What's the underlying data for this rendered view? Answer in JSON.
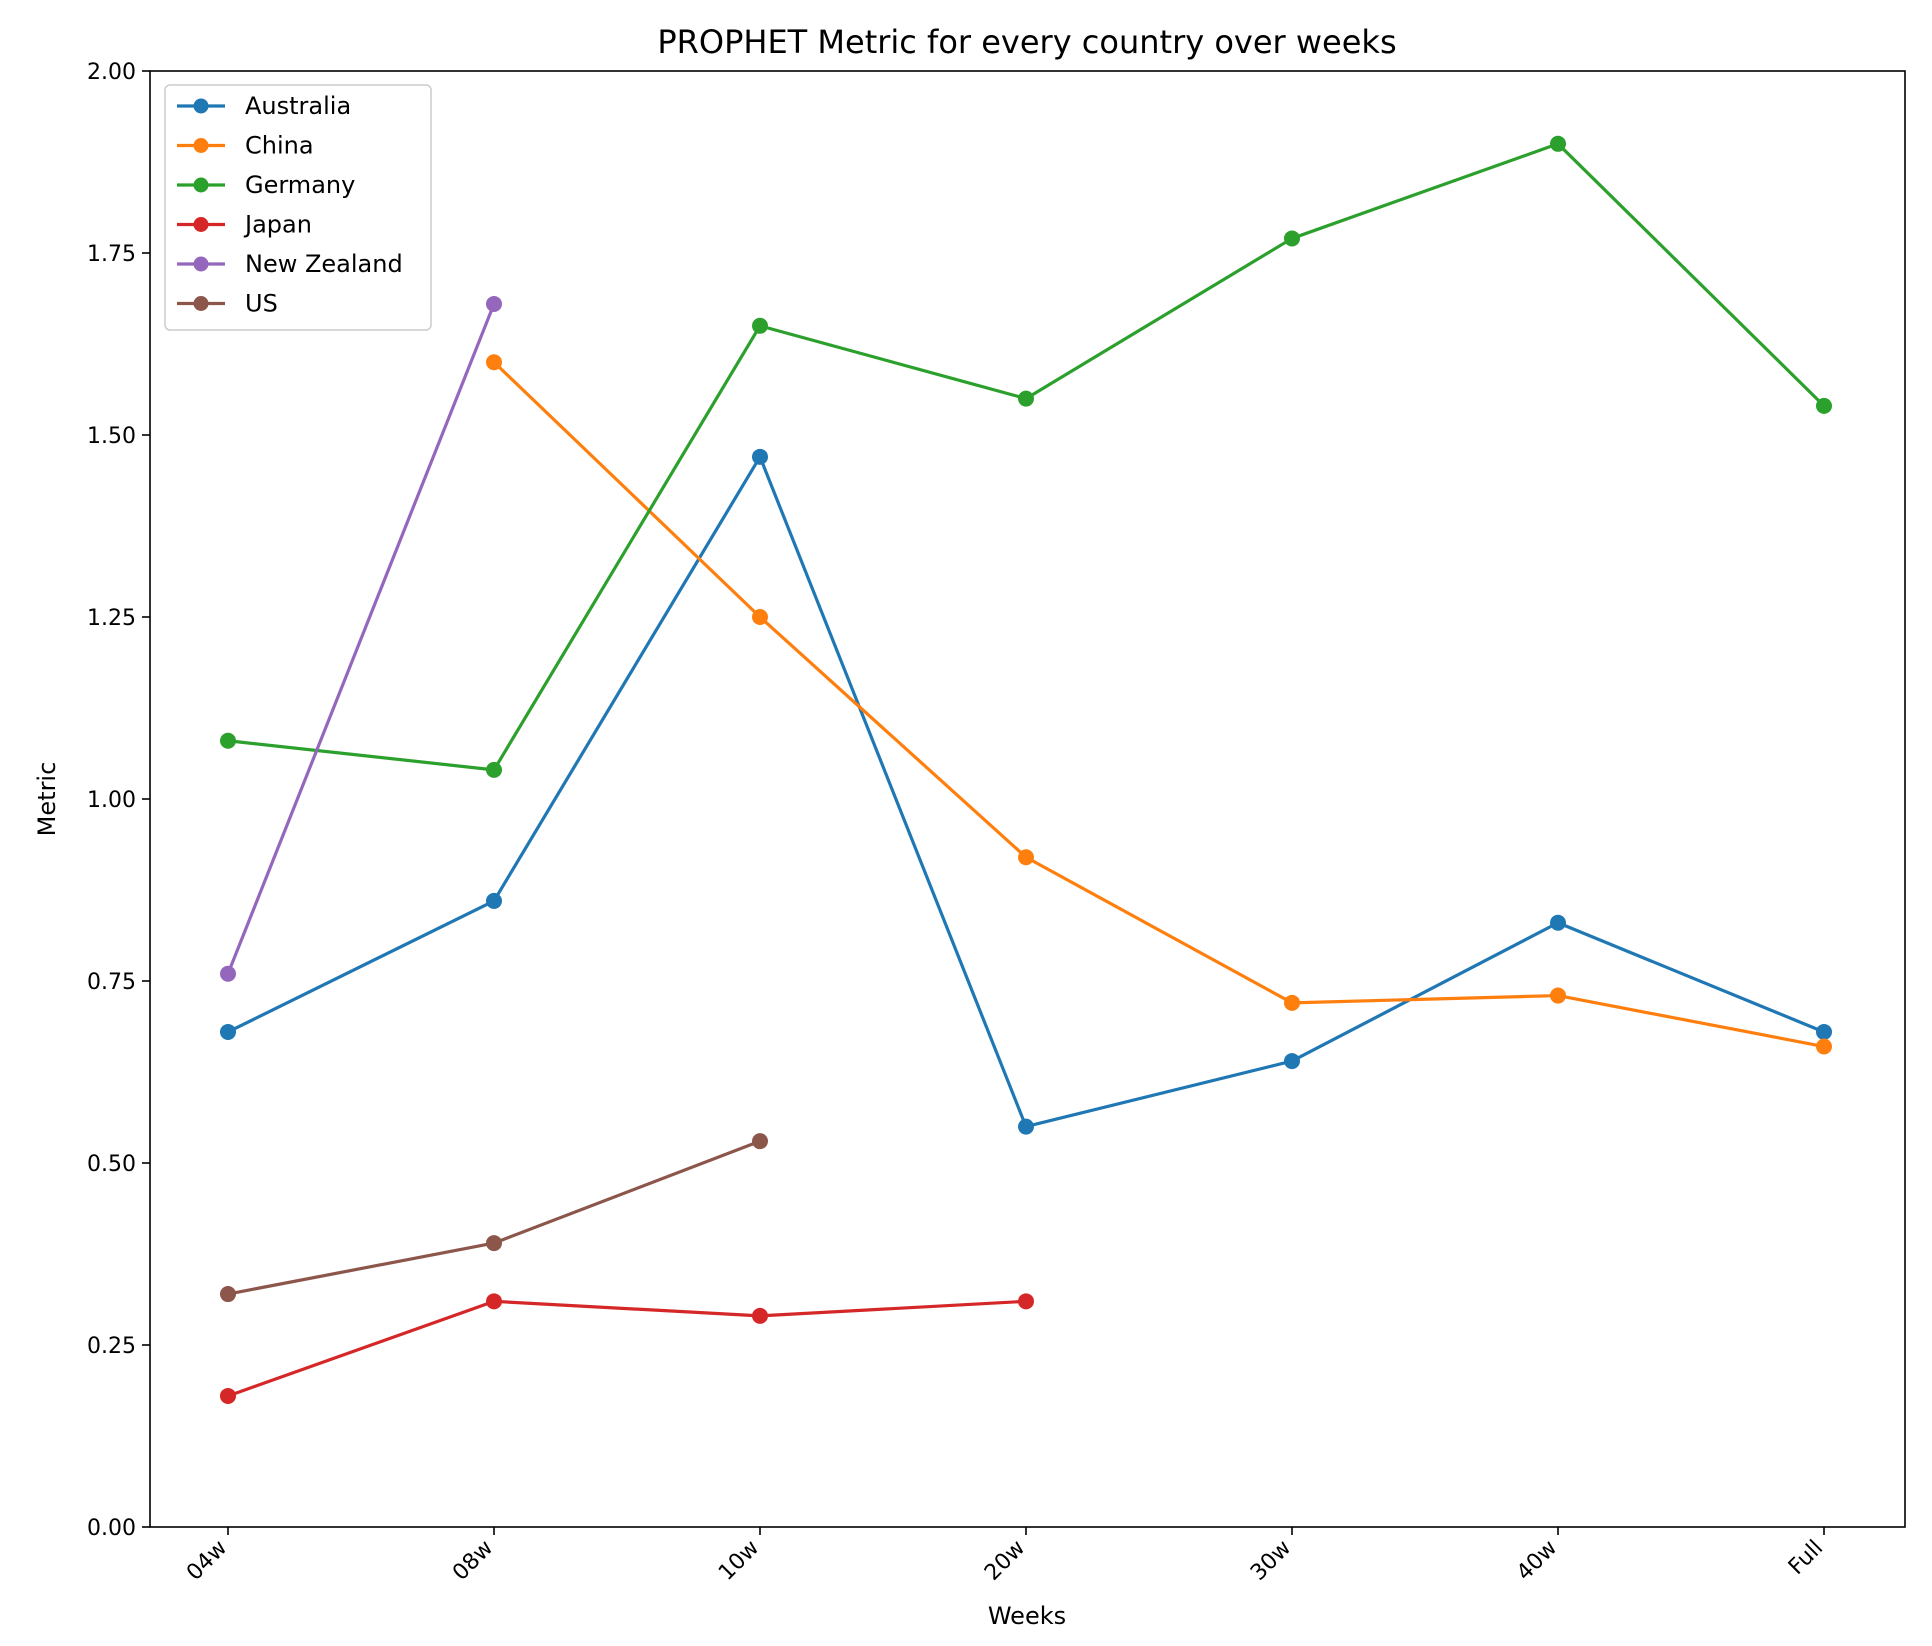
{
  "chart_data": {
    "type": "line",
    "title": "PROPHET Metric for every country over weeks",
    "xlabel": "Weeks",
    "ylabel": "Metric",
    "categories": [
      "04w",
      "08w",
      "10w",
      "20w",
      "30w",
      "40w",
      "Full"
    ],
    "ylim": [
      0,
      2
    ],
    "yticks": [
      "0.00",
      "0.25",
      "0.50",
      "0.75",
      "1.00",
      "1.25",
      "1.50",
      "1.75",
      "2.00"
    ],
    "grid": false,
    "legend_position": "top-left",
    "series": [
      {
        "name": "Australia",
        "color": "#1f77b4",
        "values": [
          0.68,
          0.86,
          1.47,
          0.55,
          0.64,
          0.83,
          0.68
        ]
      },
      {
        "name": "China",
        "color": "#ff7f0e",
        "values": [
          null,
          1.6,
          1.25,
          0.92,
          0.72,
          0.73,
          0.66
        ]
      },
      {
        "name": "Germany",
        "color": "#2ca02c",
        "values": [
          1.08,
          1.04,
          1.65,
          1.55,
          1.77,
          1.9,
          1.54
        ]
      },
      {
        "name": "Japan",
        "color": "#d62728",
        "values": [
          0.18,
          0.31,
          0.29,
          0.31,
          null,
          null,
          null
        ]
      },
      {
        "name": "New Zealand",
        "color": "#9467bd",
        "values": [
          0.76,
          1.68,
          null,
          null,
          null,
          null,
          null
        ]
      },
      {
        "name": "US",
        "color": "#8c564b",
        "values": [
          0.32,
          0.39,
          0.53,
          null,
          null,
          null,
          null
        ]
      }
    ]
  }
}
